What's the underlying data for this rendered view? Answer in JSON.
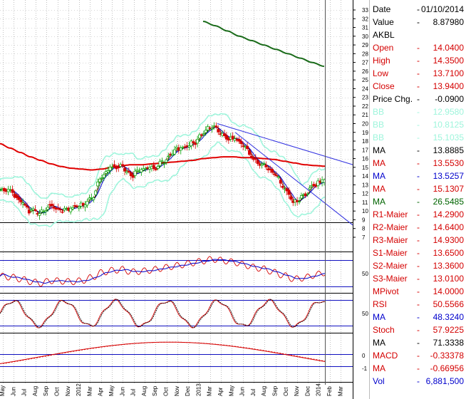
{
  "panel": {
    "rows": [
      {
        "label": "Date",
        "value": "01/10/2014",
        "color": "#000000",
        "dash": "-"
      },
      {
        "label": "Value",
        "value": "8.87980",
        "color": "#000000",
        "dash": "-"
      },
      {
        "label": "AKBL",
        "value": "",
        "color": "#000000",
        "dash": ""
      },
      {
        "label": "Open",
        "value": "14.0400",
        "color": "#d40000",
        "dash": "-"
      },
      {
        "label": "High",
        "value": "14.3500",
        "color": "#d40000",
        "dash": "-"
      },
      {
        "label": "Low",
        "value": "13.7100",
        "color": "#d40000",
        "dash": "-"
      },
      {
        "label": "Close",
        "value": "13.9400",
        "color": "#d40000",
        "dash": "-"
      },
      {
        "label": "Price Chg.",
        "value": "-0.0900",
        "color": "#000000",
        "dash": "-"
      },
      {
        "label": "BB",
        "value": "12.9580",
        "color": "#9ff5dc",
        "dash": "-"
      },
      {
        "label": "BB",
        "value": "10.8125",
        "color": "#9ff5dc",
        "dash": "-"
      },
      {
        "label": "BB",
        "value": "15.1035",
        "color": "#9ff5dc",
        "dash": "-"
      },
      {
        "label": "MA",
        "value": "13.8885",
        "color": "#000000",
        "dash": "-"
      },
      {
        "label": "MA",
        "value": "13.5530",
        "color": "#d40000",
        "dash": "-"
      },
      {
        "label": "MA",
        "value": "13.5257",
        "color": "#0000cc",
        "dash": "-"
      },
      {
        "label": "MA",
        "value": "15.1307",
        "color": "#d40000",
        "dash": "-"
      },
      {
        "label": "MA",
        "value": "26.5485",
        "color": "#006400",
        "dash": "-"
      },
      {
        "label": "R1-Maier",
        "value": "14.2900",
        "color": "#d40000",
        "dash": "-"
      },
      {
        "label": "R2-Maier",
        "value": "14.6400",
        "color": "#d40000",
        "dash": "-"
      },
      {
        "label": "R3-Maier",
        "value": "14.9300",
        "color": "#d40000",
        "dash": "-"
      },
      {
        "label": "S1-Maier",
        "value": "13.6500",
        "color": "#d40000",
        "dash": "-"
      },
      {
        "label": "S2-Maier",
        "value": "13.3600",
        "color": "#d40000",
        "dash": "-"
      },
      {
        "label": "S3-Maier",
        "value": "13.0100",
        "color": "#d40000",
        "dash": "-"
      },
      {
        "label": "MPivot",
        "value": "14.0000",
        "color": "#d40000",
        "dash": "-"
      },
      {
        "label": "RSI",
        "value": "50.5566",
        "color": "#d40000",
        "dash": "-"
      },
      {
        "label": "MA",
        "value": "48.3240",
        "color": "#0000cc",
        "dash": "-"
      },
      {
        "label": "Stoch",
        "value": "57.9225",
        "color": "#d40000",
        "dash": "-"
      },
      {
        "label": "MA",
        "value": "71.3338",
        "color": "#000000",
        "dash": "-"
      },
      {
        "label": "MACD",
        "value": "-0.33378",
        "color": "#d40000",
        "dash": "-"
      },
      {
        "label": "MA",
        "value": "-0.66956",
        "color": "#d40000",
        "dash": "-"
      },
      {
        "label": "Vol",
        "value": "6,881,500",
        "color": "#0000cc",
        "dash": "-"
      }
    ]
  },
  "axis": {
    "price_ticks": [
      "7",
      "8",
      "9",
      "10",
      "11",
      "12",
      "13",
      "14",
      "15",
      "16",
      "17",
      "18",
      "19",
      "20",
      "21",
      "22",
      "23",
      "24",
      "25",
      "26",
      "27",
      "28",
      "29",
      "30",
      "31",
      "32",
      "33"
    ],
    "rsi_ticks": [
      "50"
    ],
    "stoch_ticks": [
      "50"
    ],
    "macd_ticks": [
      "0",
      "-1"
    ],
    "time_labels": [
      "May",
      "Jun",
      "Jul",
      "Aug",
      "Sep",
      "Oct",
      "Nov",
      "2012",
      "Mar",
      "Apr",
      "May",
      "Jun",
      "Jul",
      "Aug",
      "Sep",
      "Oct",
      "Nov",
      "Dec",
      "2013",
      "Mar",
      "Apr",
      "May",
      "Jun",
      "Jul",
      "Aug",
      "Sep",
      "Oct",
      "Nov",
      "Dec",
      "2014",
      "Feb",
      "Mar"
    ]
  },
  "colors": {
    "bb": "#9ff5dc",
    "price_up": "#00a000",
    "price_down": "#d40000",
    "ma_long": "#e00000",
    "ma_green": "#1a6b1a",
    "ma_blue": "#0000cc",
    "trend_line": "#3030e0",
    "ref_line": "#1010c0"
  },
  "chart_data": {
    "type": "line",
    "title": "AKBL",
    "x": [
      "2011-05",
      "2011-06",
      "2011-07",
      "2011-08",
      "2011-09",
      "2011-10",
      "2011-11",
      "2011-12",
      "2012-01",
      "2012-02",
      "2012-03",
      "2012-04",
      "2012-05",
      "2012-06",
      "2012-07",
      "2012-08",
      "2012-09",
      "2012-10",
      "2012-11",
      "2012-12",
      "2013-01",
      "2013-02",
      "2013-03",
      "2013-04",
      "2013-05",
      "2013-06",
      "2013-07",
      "2013-08",
      "2013-09",
      "2013-10",
      "2013-11",
      "2013-12",
      "2014-01"
    ],
    "series": [
      {
        "name": "Close",
        "values": [
          12.4,
          12.1,
          11.3,
          10.2,
          9.5,
          10.6,
          10.4,
          10.1,
          10.5,
          11.8,
          13.9,
          14.8,
          15.2,
          14.2,
          14.5,
          15.0,
          15.8,
          16.5,
          17.2,
          18.0,
          18.8,
          19.5,
          18.9,
          18.3,
          17.2,
          16.1,
          15.4,
          14.0,
          12.6,
          11.2,
          11.8,
          12.9,
          13.94
        ]
      },
      {
        "name": "MA",
        "values": [
          17.7,
          17.2,
          16.7,
          16.2,
          15.8,
          15.4,
          15.1,
          14.9,
          14.8,
          14.7,
          14.8,
          15.0,
          15.2,
          15.3,
          15.3,
          15.4,
          15.5,
          15.6,
          15.7,
          15.8,
          16.0,
          16.1,
          16.2,
          16.2,
          16.1,
          16.1,
          16.0,
          15.9,
          15.7,
          15.5,
          15.3,
          15.2,
          15.1307
        ]
      },
      {
        "name": "MA",
        "values": [
          null,
          null,
          null,
          null,
          null,
          null,
          null,
          null,
          null,
          null,
          null,
          null,
          null,
          null,
          null,
          null,
          null,
          null,
          null,
          null,
          null,
          null,
          31.7,
          31.2,
          30.6,
          30.0,
          29.5,
          29.0,
          28.5,
          28.0,
          27.5,
          27.0,
          26.5485
        ]
      }
    ],
    "ylim": [
      7,
      33
    ],
    "grid": true,
    "indicators": {
      "rsi": {
        "last": 50.5566,
        "ma": 48.324
      },
      "stoch": {
        "last": 57.9225,
        "ma": 71.3338
      },
      "macd": {
        "last": -0.33378,
        "signal": -0.66956
      },
      "volume": 6881500
    }
  }
}
